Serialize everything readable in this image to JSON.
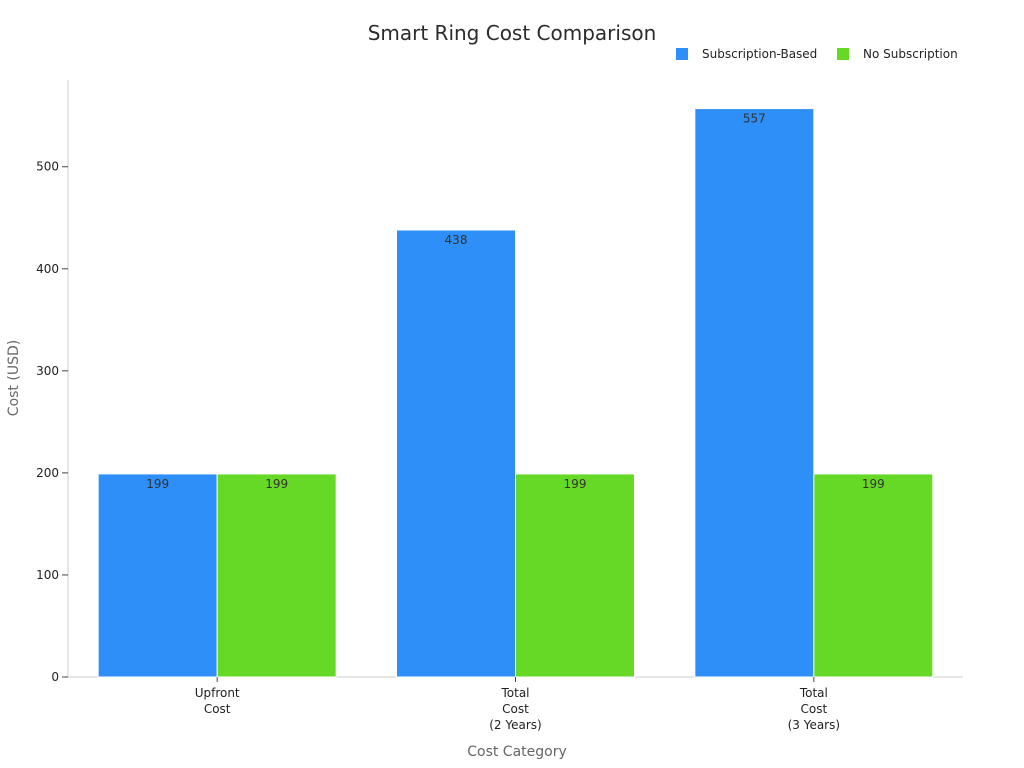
{
  "chart_data": {
    "type": "bar",
    "title": "Smart Ring Cost Comparison",
    "xlabel": "Cost Category",
    "ylabel": "Cost (USD)",
    "categories": [
      [
        "Upfront",
        "Cost"
      ],
      [
        "Total",
        "Cost",
        "(2 Years)"
      ],
      [
        "Total",
        "Cost",
        "(3 Years)"
      ]
    ],
    "series": [
      {
        "name": "Subscription-Based",
        "color": "#2D8FF7",
        "values": [
          199,
          438,
          557
        ]
      },
      {
        "name": "No Subscription",
        "color": "#66D926",
        "values": [
          199,
          199,
          199
        ]
      }
    ],
    "ylim": [
      0,
      585
    ],
    "yticks": [
      0,
      100,
      200,
      300,
      400,
      500
    ],
    "grid": false,
    "legend_position": "top-right",
    "data_labels": true
  }
}
